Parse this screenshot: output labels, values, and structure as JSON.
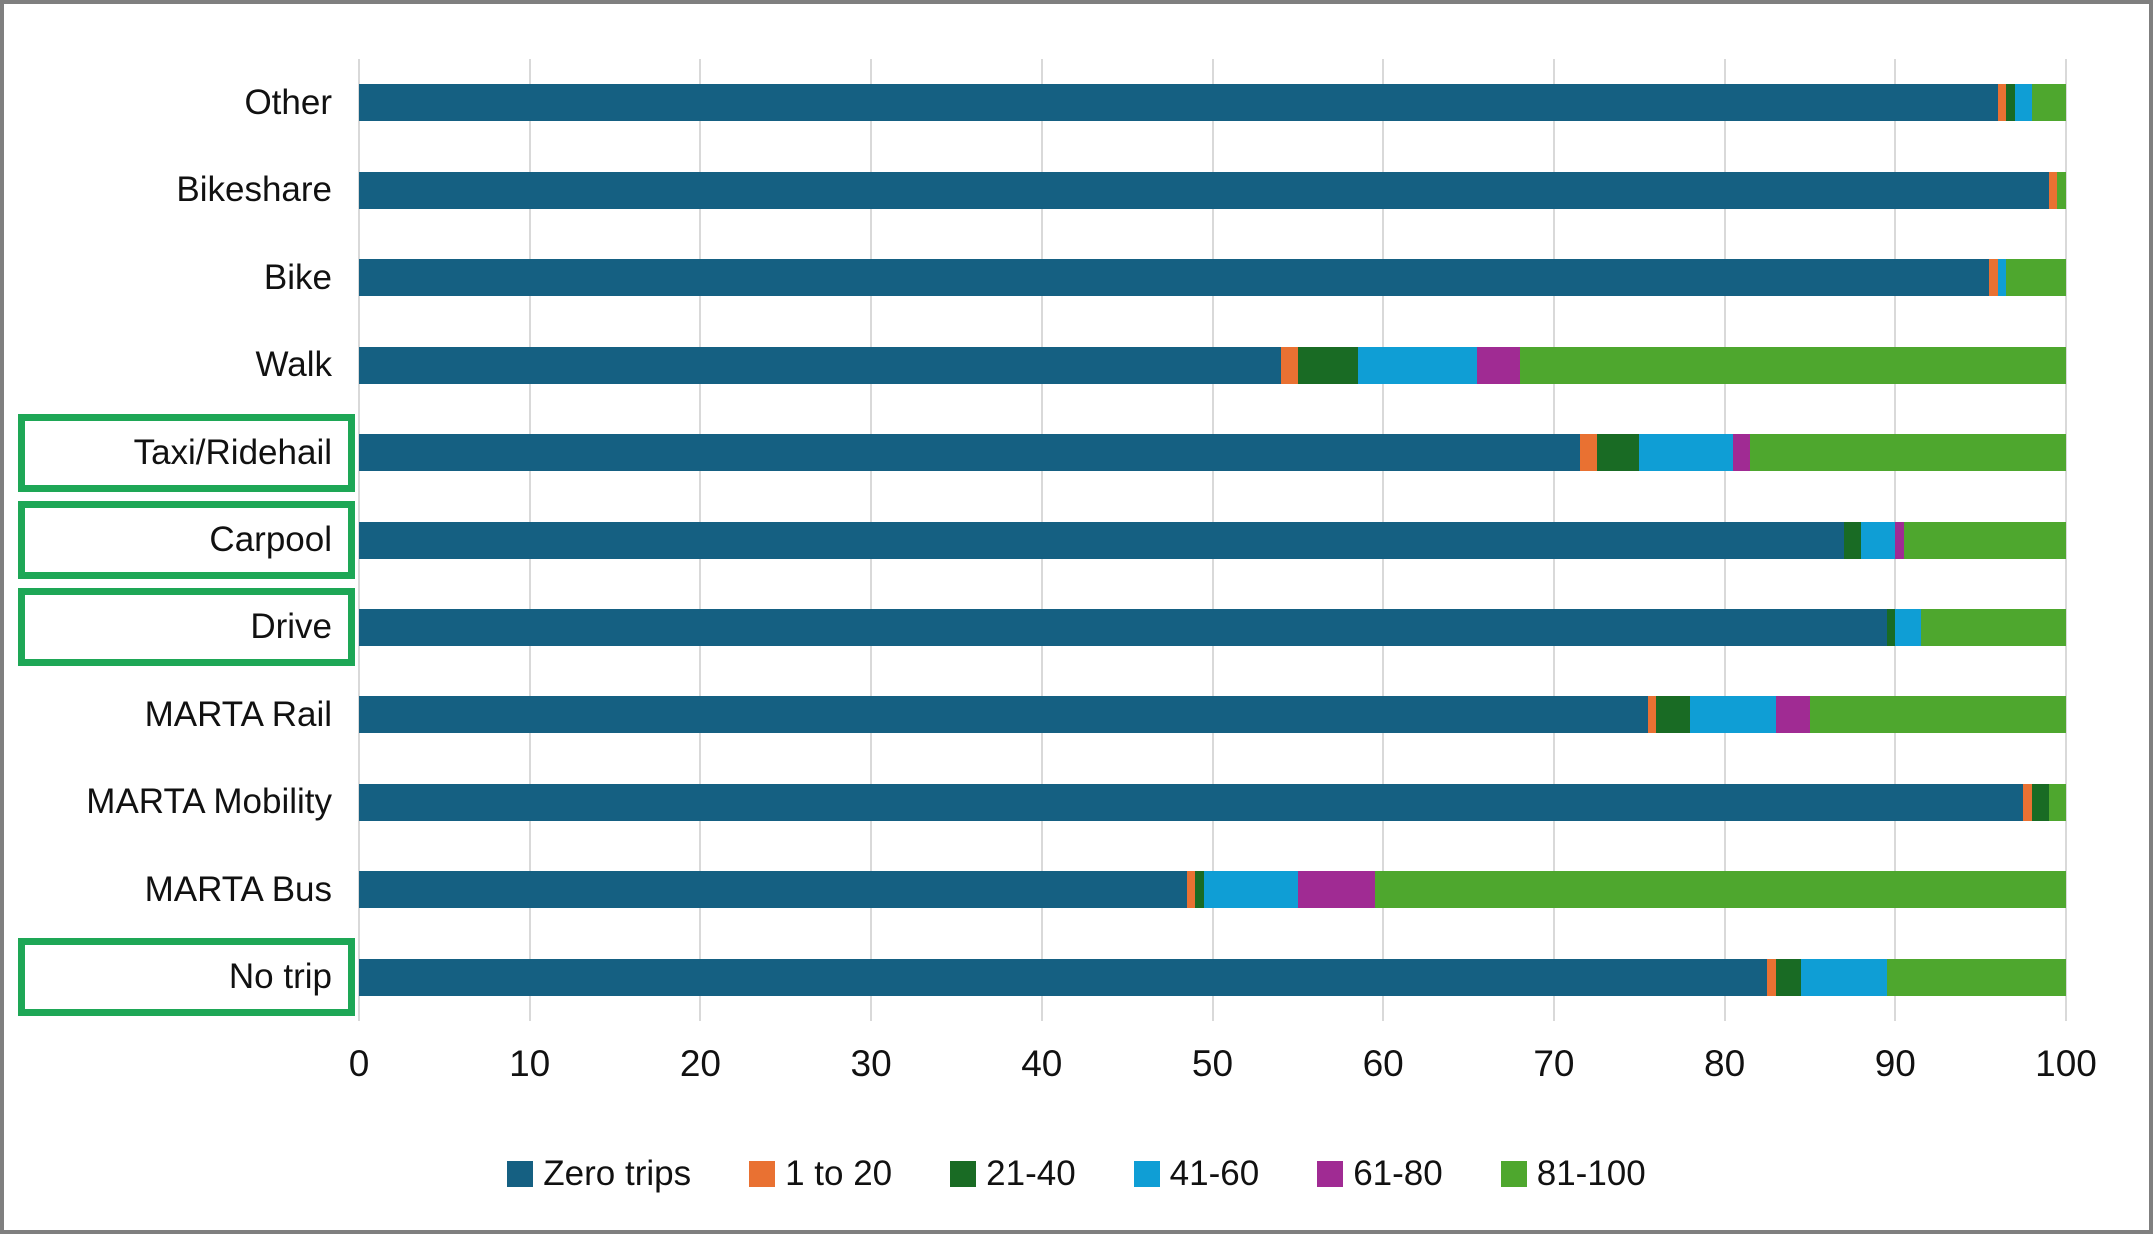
{
  "figure": {
    "background": "#ffffff",
    "frame_border_color": "#7f7f7f",
    "gridline_color": "#d9d9d9",
    "text_color": "#111111"
  },
  "chart_data": {
    "type": "bar",
    "orientation": "horizontal",
    "stacked": true,
    "grid": true,
    "xlim": [
      0,
      100
    ],
    "x_ticks": [
      0,
      10,
      20,
      30,
      40,
      50,
      60,
      70,
      80,
      90,
      100
    ],
    "legend_position": "bottom",
    "categories": [
      "Other",
      "Bikeshare",
      "Bike",
      "Walk",
      "Taxi/Ridehail",
      "Carpool",
      "Drive",
      "MARTA Rail",
      "MARTA Mobility",
      "MARTA Bus",
      "No trip"
    ],
    "highlighted_categories": [
      "Taxi/Ridehail",
      "Carpool",
      "Drive",
      "No trip"
    ],
    "highlight_box_color": "#1ea756",
    "series": [
      {
        "name": "Zero trips",
        "color": "#156082",
        "values": [
          96,
          99,
          95.5,
          54,
          71.5,
          87,
          89.5,
          75.5,
          97.5,
          48.5,
          82.5
        ]
      },
      {
        "name": "1 to 20",
        "color": "#e97132",
        "values": [
          0.5,
          0.5,
          0.5,
          1,
          1,
          0,
          0,
          0.5,
          0.5,
          0.5,
          0.5
        ]
      },
      {
        "name": "21-40",
        "color": "#196b24",
        "values": [
          0.5,
          0,
          0,
          3.5,
          2.5,
          1,
          0.5,
          2,
          1,
          0.5,
          1.5
        ]
      },
      {
        "name": "41-60",
        "color": "#0f9ed5",
        "values": [
          1,
          0,
          0.5,
          7,
          5.5,
          2,
          1.5,
          5,
          0,
          5.5,
          5
        ]
      },
      {
        "name": "61-80",
        "color": "#a02b93",
        "values": [
          0,
          0,
          0,
          2.5,
          1,
          0.5,
          0,
          2,
          0,
          4.5,
          0
        ]
      },
      {
        "name": "81-100",
        "color": "#4ea72e",
        "values": [
          2,
          0.5,
          3.5,
          32,
          18.5,
          9.5,
          8.5,
          15,
          1,
          40.5,
          10.5
        ]
      }
    ]
  }
}
